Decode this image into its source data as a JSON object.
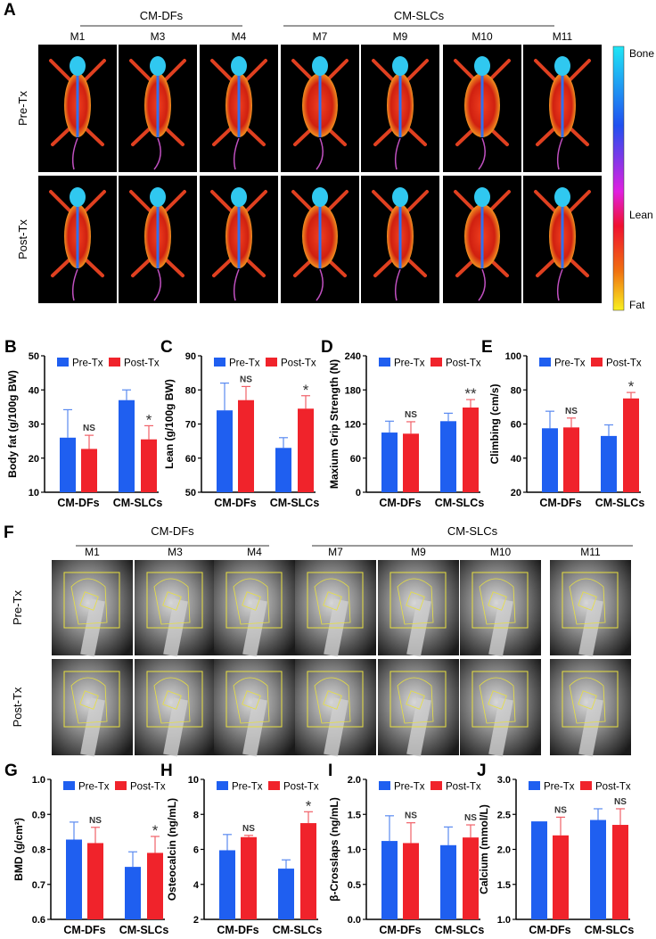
{
  "panelA": {
    "label": "A",
    "groups": [
      "CM-DFs",
      "CM-SLCs"
    ],
    "mice": [
      "M1",
      "M3",
      "M4",
      "M7",
      "M9",
      "M10",
      "M11"
    ],
    "rows": [
      "Pre-Tx",
      "Post-Tx"
    ],
    "colorbar": {
      "top": "Bone",
      "middle": "Lean",
      "bottom": "Fat",
      "colors": [
        "#20e6f5",
        "#2050f0",
        "#e020e0",
        "#f01030",
        "#f07010",
        "#f8f020"
      ]
    }
  },
  "panelF": {
    "label": "F",
    "groups": [
      "CM-DFs",
      "CM-SLCs"
    ],
    "mice": [
      "M1",
      "M3",
      "M4",
      "M7",
      "M9",
      "M10",
      "M11"
    ],
    "rows": [
      "Pre-Tx",
      "Post-Tx"
    ]
  },
  "legend": {
    "pre": "Pre-Tx",
    "post": "Post-Tx",
    "pre_color": "#1f5ff0",
    "post_color": "#f0232b"
  },
  "chart_data": [
    {
      "panel": "B",
      "type": "bar",
      "ylabel": "Body fat (g/100g BW)",
      "ylim": [
        10,
        50
      ],
      "yticks": [
        "10",
        "20",
        "30",
        "40",
        "50"
      ],
      "categories": [
        "CM-DFs",
        "CM-SLCs"
      ],
      "series": [
        {
          "name": "Pre-Tx",
          "values": [
            26,
            37
          ],
          "errors": [
            8.2,
            3
          ]
        },
        {
          "name": "Post-Tx",
          "values": [
            22.7,
            25.5
          ],
          "errors": [
            4,
            4
          ]
        }
      ],
      "significance": [
        "NS",
        "*"
      ]
    },
    {
      "panel": "C",
      "type": "bar",
      "ylabel": "Lean (g/100g BW)",
      "ylim": [
        50,
        90
      ],
      "yticks": [
        "50",
        "60",
        "70",
        "80",
        "90"
      ],
      "categories": [
        "CM-DFs",
        "CM-SLCs"
      ],
      "series": [
        {
          "name": "Pre-Tx",
          "values": [
            74,
            63
          ],
          "errors": [
            8,
            3
          ]
        },
        {
          "name": "Post-Tx",
          "values": [
            77,
            74.5
          ],
          "errors": [
            4,
            3.8
          ]
        }
      ],
      "significance": [
        "NS",
        "*"
      ]
    },
    {
      "panel": "D",
      "type": "bar",
      "ylabel": "Maxium Grip Strength (N)",
      "ylim": [
        0,
        240
      ],
      "yticks": [
        "0",
        "60",
        "120",
        "180",
        "240"
      ],
      "categories": [
        "CM-DFs",
        "CM-SLCs"
      ],
      "series": [
        {
          "name": "Pre-Tx",
          "values": [
            105,
            125
          ],
          "errors": [
            20,
            14
          ]
        },
        {
          "name": "Post-Tx",
          "values": [
            103,
            149
          ],
          "errors": [
            21,
            14
          ]
        }
      ],
      "significance": [
        "NS",
        "**"
      ]
    },
    {
      "panel": "E",
      "type": "bar",
      "ylabel": "Climbing (cm/s)",
      "ylim": [
        20,
        100
      ],
      "yticks": [
        "20",
        "40",
        "60",
        "80",
        "100"
      ],
      "categories": [
        "CM-DFs",
        "CM-SLCs"
      ],
      "series": [
        {
          "name": "Pre-Tx",
          "values": [
            57.5,
            53
          ],
          "errors": [
            10,
            6.5
          ]
        },
        {
          "name": "Post-Tx",
          "values": [
            58,
            75
          ],
          "errors": [
            5.5,
            3.5
          ]
        }
      ],
      "significance": [
        "NS",
        "*"
      ]
    },
    {
      "panel": "G",
      "type": "bar",
      "ylabel": "BMD (g/cm²)",
      "ylim": [
        0.6,
        1.0
      ],
      "yticks": [
        "0.6",
        "0.7",
        "0.8",
        "0.9",
        "1.0"
      ],
      "categories": [
        "CM-DFs",
        "CM-SLCs"
      ],
      "series": [
        {
          "name": "Pre-Tx",
          "values": [
            0.828,
            0.75
          ],
          "errors": [
            0.05,
            0.043
          ]
        },
        {
          "name": "Post-Tx",
          "values": [
            0.818,
            0.79
          ],
          "errors": [
            0.045,
            0.047
          ]
        }
      ],
      "significance": [
        "NS",
        "*"
      ]
    },
    {
      "panel": "H",
      "type": "bar",
      "ylabel": "Osteocalcin (ng/mL)",
      "ylim": [
        2,
        10
      ],
      "yticks": [
        "2",
        "4",
        "6",
        "8",
        "10"
      ],
      "categories": [
        "CM-DFs",
        "CM-SLCs"
      ],
      "series": [
        {
          "name": "Pre-Tx",
          "values": [
            5.95,
            4.9
          ],
          "errors": [
            0.9,
            0.5
          ]
        },
        {
          "name": "Post-Tx",
          "values": [
            6.7,
            7.5
          ],
          "errors": [
            0.1,
            0.65
          ]
        }
      ],
      "significance": [
        "NS",
        "*"
      ]
    },
    {
      "panel": "I",
      "type": "bar",
      "ylabel": "β-Crosslaps (ng/mL)",
      "ylim": [
        0,
        2
      ],
      "yticks": [
        "0.0",
        "0.5",
        "1.0",
        "1.5",
        "2.0"
      ],
      "categories": [
        "CM-DFs",
        "CM-SLCs"
      ],
      "series": [
        {
          "name": "Pre-Tx",
          "values": [
            1.12,
            1.06
          ],
          "errors": [
            0.36,
            0.26
          ]
        },
        {
          "name": "Post-Tx",
          "values": [
            1.09,
            1.17
          ],
          "errors": [
            0.29,
            0.18
          ]
        }
      ],
      "significance": [
        "NS",
        "NS"
      ]
    },
    {
      "panel": "J",
      "type": "bar",
      "ylabel": "Calcium (mmol/L)",
      "ylim": [
        1,
        3
      ],
      "yticks": [
        "1.0",
        "1.5",
        "2.0",
        "2.5",
        "3.0"
      ],
      "categories": [
        "CM-DFs",
        "CM-SLCs"
      ],
      "series": [
        {
          "name": "Pre-Tx",
          "values": [
            2.4,
            2.42
          ],
          "errors": [
            0,
            0.16
          ]
        },
        {
          "name": "Post-Tx",
          "values": [
            2.2,
            2.35
          ],
          "errors": [
            0.26,
            0.23
          ]
        }
      ],
      "significance": [
        "NS",
        "NS"
      ]
    }
  ]
}
